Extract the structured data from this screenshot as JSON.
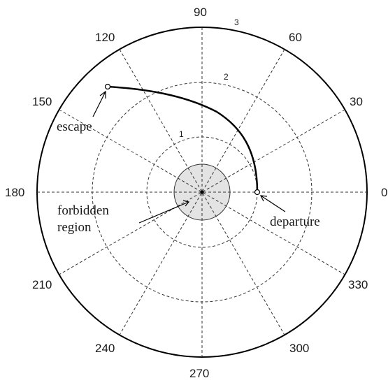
{
  "polar_plot": {
    "angle_labels": [
      "0",
      "30",
      "60",
      "90",
      "120",
      "150",
      "180",
      "210",
      "240",
      "270",
      "300",
      "330"
    ],
    "ring_labels": [
      "1",
      "2",
      "3"
    ]
  },
  "annotations": {
    "escape": "escape",
    "departure": "departure",
    "forbidden_line1": "forbidden",
    "forbidden_line2": "region"
  },
  "colors": {
    "forbidden_fill": "#e3e3e3",
    "stroke": "#000000"
  }
}
